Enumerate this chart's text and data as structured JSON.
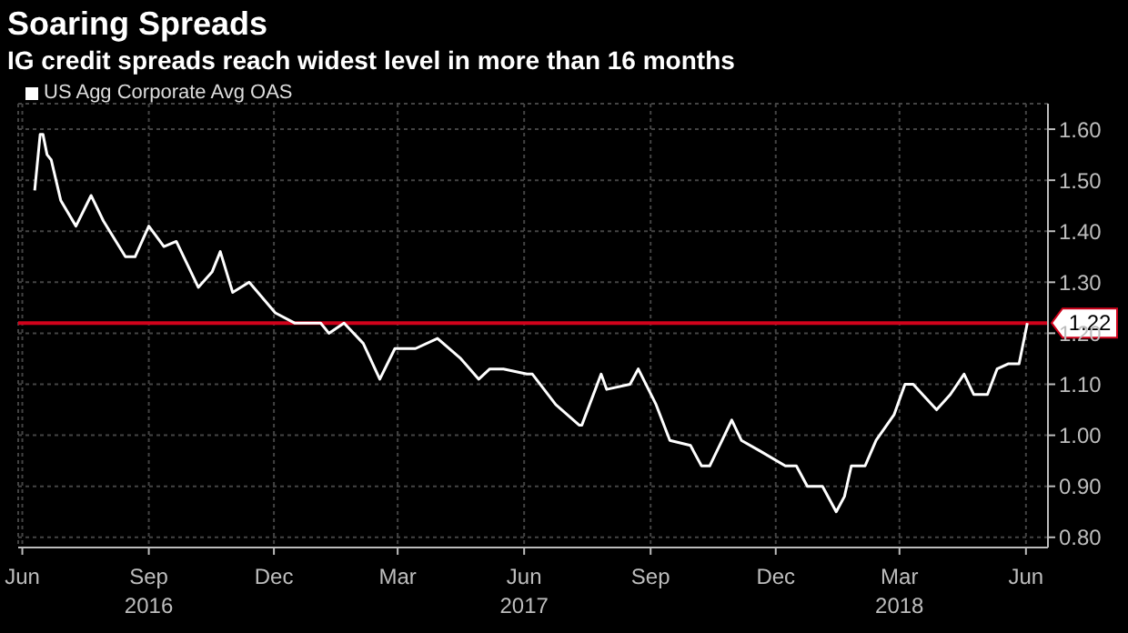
{
  "chart_data": {
    "type": "line",
    "title": "Soaring Spreads",
    "subtitle": "IG credit spreads reach widest level in more than 16 months",
    "x": [
      "2016-06-24",
      "2016-06-28",
      "2016-06-30",
      "2016-07-03",
      "2016-07-06",
      "2016-07-13",
      "2016-07-24",
      "2016-08-04",
      "2016-08-13",
      "2016-08-29",
      "2016-09-05",
      "2016-09-15",
      "2016-09-26",
      "2016-10-05",
      "2016-10-21",
      "2016-10-31",
      "2016-11-06",
      "2016-11-15",
      "2016-11-27",
      "2016-12-16",
      "2016-12-30",
      "2017-01-18",
      "2017-01-24",
      "2017-02-04",
      "2017-02-18",
      "2017-03-02",
      "2017-03-13",
      "2017-03-28",
      "2017-04-13",
      "2017-04-30",
      "2017-05-13",
      "2017-05-21",
      "2017-05-31",
      "2017-06-17",
      "2017-06-21",
      "2017-07-08",
      "2017-07-25",
      "2017-07-27",
      "2017-08-10",
      "2017-08-14",
      "2017-08-31",
      "2017-09-06",
      "2017-09-19",
      "2017-09-29",
      "2017-10-14",
      "2017-10-22",
      "2017-10-28",
      "2017-11-06",
      "2017-11-13",
      "2017-11-20",
      "2017-12-03",
      "2017-12-22",
      "2017-12-30",
      "2018-01-07",
      "2018-01-18",
      "2018-01-28",
      "2018-02-03",
      "2018-02-08",
      "2018-02-18",
      "2018-02-26",
      "2018-03-11",
      "2018-03-19",
      "2018-03-25",
      "2018-04-11",
      "2018-04-21",
      "2018-05-01",
      "2018-05-08",
      "2018-05-18",
      "2018-05-25",
      "2018-06-02",
      "2018-06-10",
      "2018-06-16"
    ],
    "series": [
      {
        "name": "US Agg Corporate Avg OAS",
        "color": "#ffffff",
        "values": [
          1.48,
          1.59,
          1.59,
          1.55,
          1.54,
          1.46,
          1.41,
          1.47,
          1.42,
          1.35,
          1.35,
          1.41,
          1.37,
          1.38,
          1.29,
          1.32,
          1.36,
          1.28,
          1.3,
          1.24,
          1.22,
          1.22,
          1.2,
          1.22,
          1.18,
          1.11,
          1.17,
          1.17,
          1.19,
          1.15,
          1.11,
          1.13,
          1.13,
          1.12,
          1.12,
          1.06,
          1.02,
          1.02,
          1.12,
          1.09,
          1.1,
          1.13,
          1.06,
          0.99,
          0.98,
          0.94,
          0.94,
          0.99,
          1.03,
          0.99,
          0.97,
          0.94,
          0.94,
          0.9,
          0.9,
          0.85,
          0.88,
          0.94,
          0.94,
          0.99,
          1.04,
          1.1,
          1.1,
          1.05,
          1.08,
          1.12,
          1.08,
          1.08,
          1.13,
          1.14,
          1.14,
          1.22
        ]
      }
    ],
    "xlim": [
      "2016-06-12",
      "2018-07-01"
    ],
    "xticks": [
      {
        "value": "2016-06-15",
        "label": "Jun"
      },
      {
        "value": "2016-09-15",
        "label": "Sep\n2016"
      },
      {
        "value": "2016-12-15",
        "label": "Dec"
      },
      {
        "value": "2017-03-15",
        "label": "Mar"
      },
      {
        "value": "2017-06-15",
        "label": "Jun\n2017"
      },
      {
        "value": "2017-09-15",
        "label": "Sep"
      },
      {
        "value": "2017-12-15",
        "label": "Dec"
      },
      {
        "value": "2018-03-15",
        "label": "Mar\n2018"
      },
      {
        "value": "2018-06-15",
        "label": "Jun"
      }
    ],
    "ylim": [
      0.78,
      1.65
    ],
    "yticks": [
      {
        "value": 0.8,
        "label": "0.80"
      },
      {
        "value": 0.9,
        "label": "0.90"
      },
      {
        "value": 1.0,
        "label": "1.00"
      },
      {
        "value": 1.1,
        "label": "1.10"
      },
      {
        "value": 1.2,
        "label": "1.20"
      },
      {
        "value": 1.3,
        "label": "1.30"
      },
      {
        "value": 1.4,
        "label": "1.40"
      },
      {
        "value": 1.5,
        "label": "1.50"
      },
      {
        "value": 1.6,
        "label": "1.60"
      }
    ],
    "ref_lines": [
      {
        "axis": "y",
        "value": 1.22,
        "label": "1.22",
        "color": "#d0021b"
      }
    ],
    "grid": true,
    "legend": "top left",
    "marker": "none",
    "line_style": "solid"
  }
}
